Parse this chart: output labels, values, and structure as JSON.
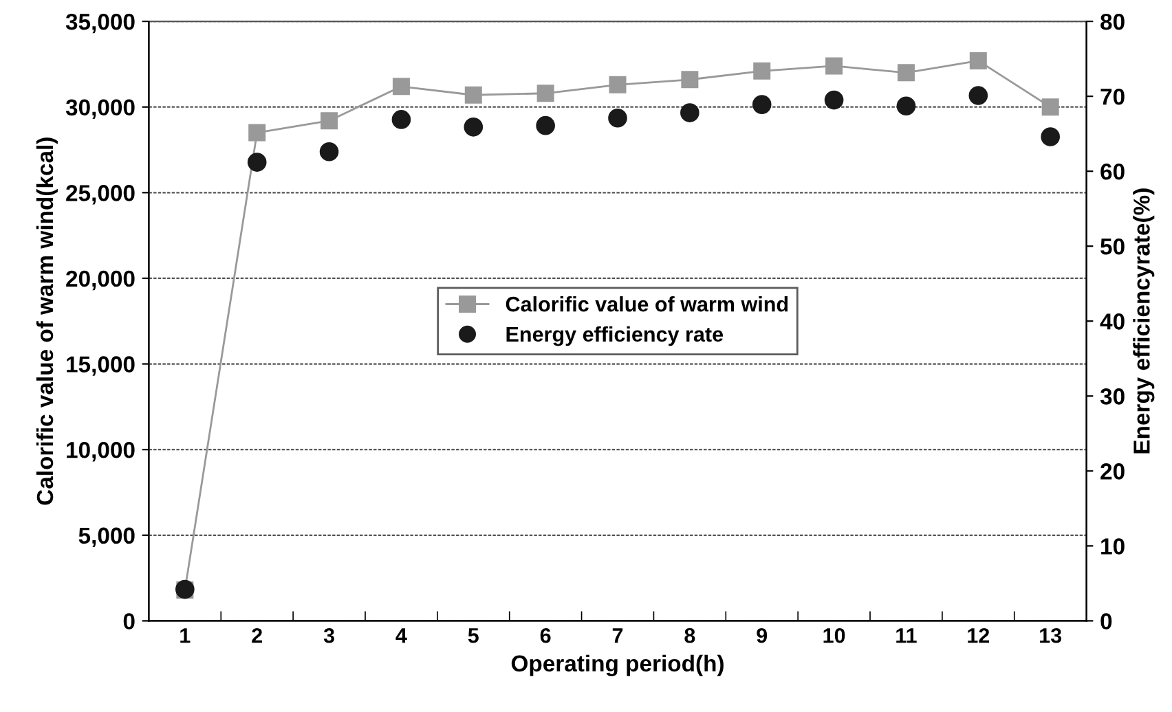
{
  "chart_data": {
    "type": "line",
    "xlabel": "Operating period(h)",
    "ylabel": "Calorific value of warm wind(kcal)",
    "y2label": "Energy efficiencyrate(%)",
    "categories": [
      "1",
      "2",
      "3",
      "4",
      "5",
      "6",
      "7",
      "8",
      "9",
      "10",
      "11",
      "12",
      "13"
    ],
    "series": [
      {
        "name": "Calorific value of warm wind",
        "marker": "square",
        "color": "#999999",
        "values": [
          1800,
          28500,
          29200,
          31200,
          30700,
          30800,
          31300,
          31600,
          32100,
          32400,
          32000,
          32700,
          30000
        ]
      },
      {
        "name": "Energy efficiency rate",
        "type": "scatter",
        "marker": "circle",
        "axis": "y2",
        "color": "#1a1a1a",
        "values": [
          4.2,
          61.2,
          62.6,
          66.9,
          65.9,
          66.1,
          67.1,
          67.8,
          68.9,
          69.5,
          68.7,
          70.1,
          64.6
        ]
      }
    ],
    "ylim": [
      0,
      35000
    ],
    "yticks": [
      {
        "value": 0,
        "label": "0"
      },
      {
        "value": 5000,
        "label": "5,000"
      },
      {
        "value": 10000,
        "label": "10,000"
      },
      {
        "value": 15000,
        "label": "15,000"
      },
      {
        "value": 20000,
        "label": "20,000"
      },
      {
        "value": 25000,
        "label": "25,000"
      },
      {
        "value": 30000,
        "label": "30,000"
      },
      {
        "value": 35000,
        "label": "35,000"
      }
    ],
    "y2lim": [
      0,
      80
    ],
    "y2ticks": [
      0,
      10,
      20,
      30,
      40,
      50,
      60,
      70,
      80
    ],
    "grid": "y",
    "legend": "center"
  }
}
